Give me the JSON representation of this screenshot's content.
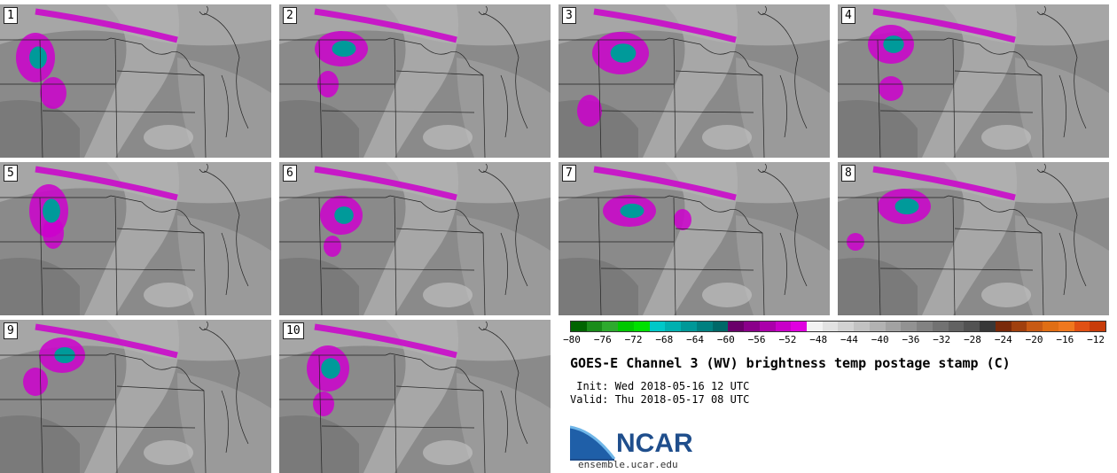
{
  "panels": [
    {
      "label": "1"
    },
    {
      "label": "2"
    },
    {
      "label": "3"
    },
    {
      "label": "4"
    },
    {
      "label": "5"
    },
    {
      "label": "6"
    },
    {
      "label": "7"
    },
    {
      "label": "8"
    },
    {
      "label": "9"
    },
    {
      "label": "10"
    }
  ],
  "colorbar": {
    "colors": [
      "#006400",
      "#1a8c1a",
      "#2eaa2e",
      "#00c800",
      "#00e000",
      "#00c8c8",
      "#00b0b0",
      "#009898",
      "#008080",
      "#006868",
      "#6a006a",
      "#8a008a",
      "#aa00aa",
      "#c800c8",
      "#e000e0",
      "#f2f2f2",
      "#e2e2e2",
      "#d2d2d2",
      "#c2c2c2",
      "#b2b2b2",
      "#a2a2a2",
      "#929292",
      "#828282",
      "#727272",
      "#626262",
      "#525252",
      "#383838",
      "#7a2a0a",
      "#a0400e",
      "#c85a14",
      "#e06e14",
      "#f0781e",
      "#e05014",
      "#c83c0a"
    ],
    "ticks": [
      "−80",
      "−76",
      "−72",
      "−68",
      "−64",
      "−60",
      "−56",
      "−52",
      "−48",
      "−44",
      "−40",
      "−36",
      "−32",
      "−28",
      "−24",
      "−20",
      "−16",
      "−12"
    ]
  },
  "title": "GOES-E Channel 3 (WV) brightness temp postage stamp (C)",
  "init": " Init: Wed 2018-05-16 12 UTC",
  "valid": "Valid: Thu 2018-05-17 08 UTC",
  "logo": {
    "name": "NCAR",
    "url": "ensemble.ucar.edu"
  }
}
